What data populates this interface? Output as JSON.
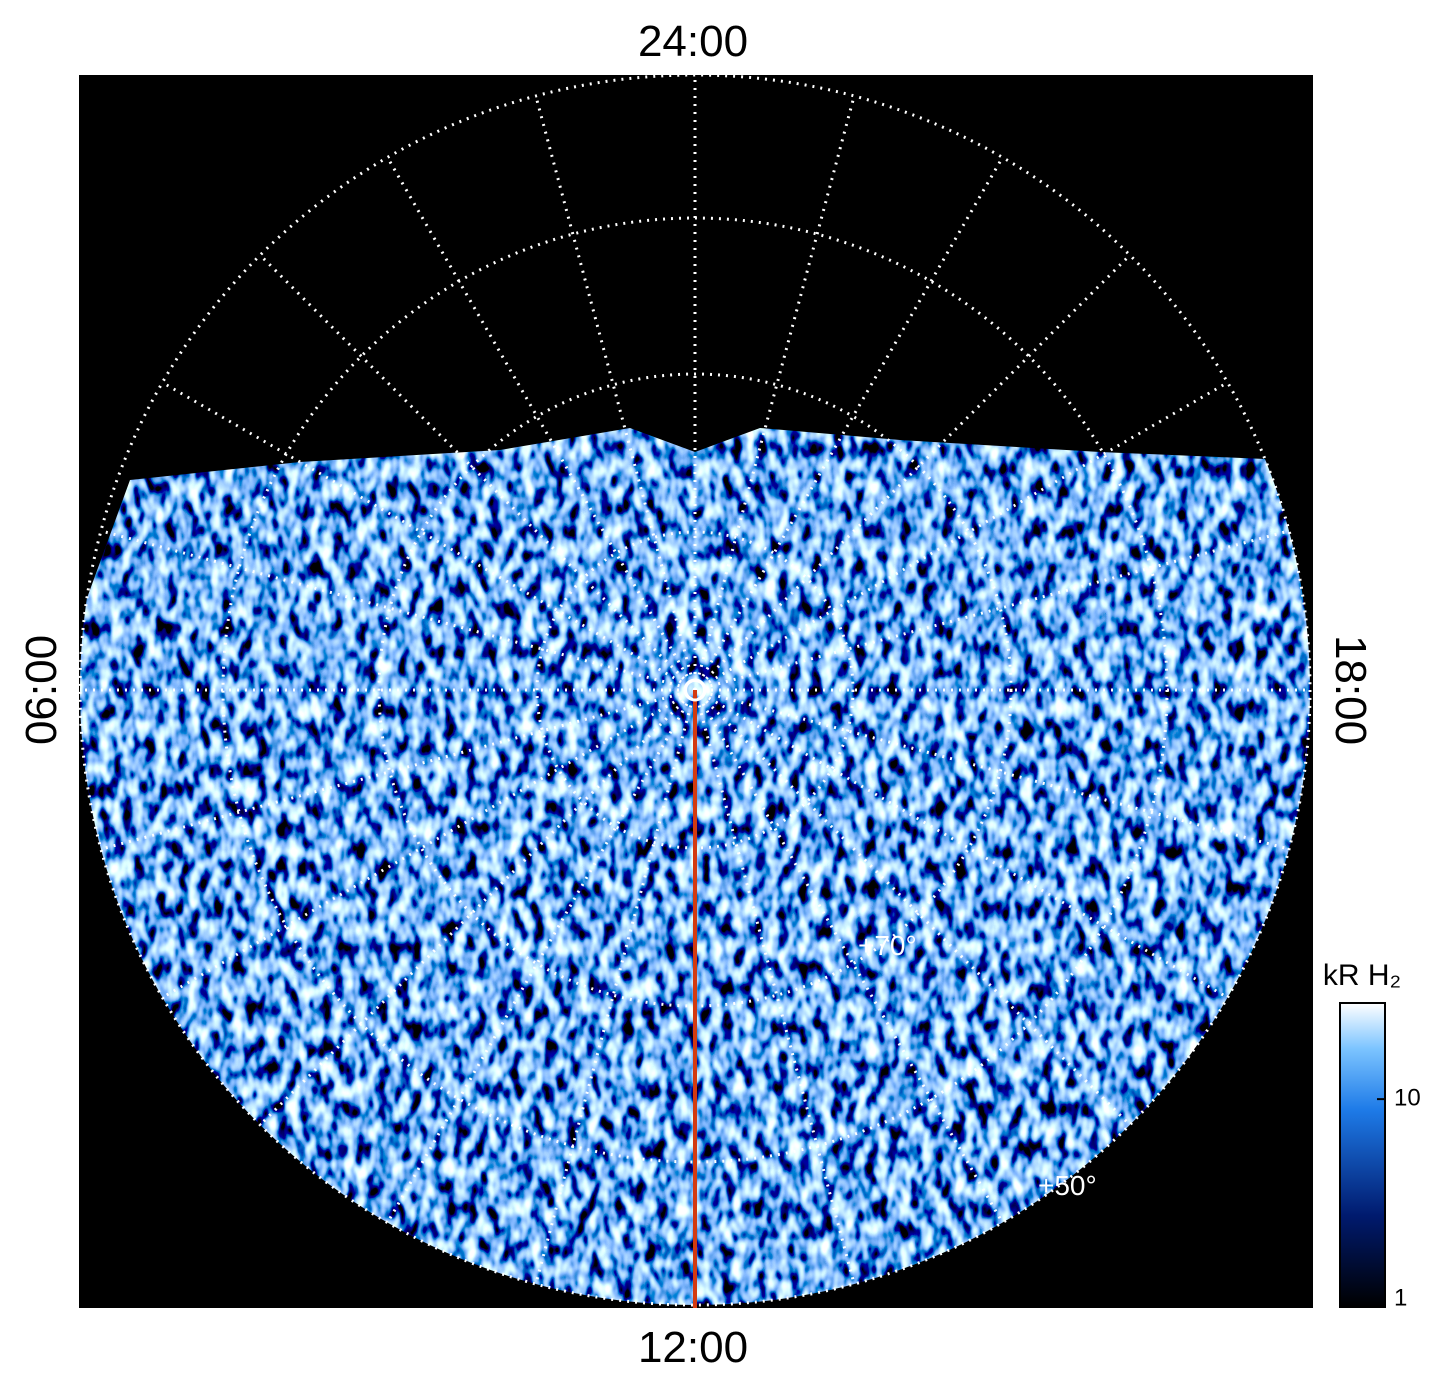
{
  "local_time_labels": {
    "top": "24:00",
    "bottom": "12:00",
    "left": "06:00",
    "right": "18:00"
  },
  "latitude_labels": [
    "+70°",
    "+50°"
  ],
  "colorbar": {
    "label": "kR H₂",
    "scale": "log",
    "lim": [
      1,
      29
    ],
    "ticks": [
      1,
      10
    ]
  }
}
